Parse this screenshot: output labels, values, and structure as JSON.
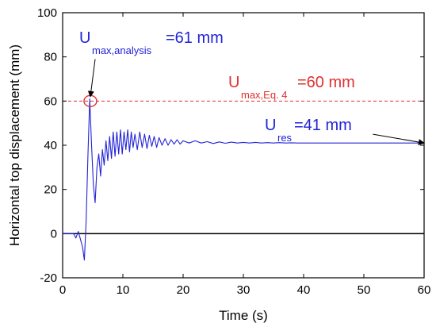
{
  "chart_data": {
    "type": "line",
    "title": "",
    "xlabel": "Time (s)",
    "ylabel": "Horizontal top displacement (mm)",
    "xlim": [
      0,
      60
    ],
    "ylim": [
      -20,
      100
    ],
    "x_ticks": [
      0,
      10,
      20,
      30,
      40,
      50,
      60
    ],
    "y_ticks": [
      -20,
      0,
      20,
      40,
      60,
      80,
      100
    ],
    "grid": false,
    "series": [
      {
        "color": "#2323d8",
        "x": [
          0.0,
          1.8,
          2.2,
          2.6,
          3.0,
          3.3,
          3.6,
          3.9,
          4.2,
          4.5,
          4.8,
          5.1,
          5.4,
          5.7,
          6.0,
          6.3,
          6.6,
          6.9,
          7.2,
          7.5,
          7.8,
          8.1,
          8.4,
          8.7,
          9.0,
          9.3,
          9.6,
          9.9,
          10.2,
          10.5,
          10.8,
          11.1,
          11.4,
          11.7,
          12.0,
          12.4,
          12.8,
          13.2,
          13.6,
          14.0,
          14.4,
          14.8,
          15.2,
          15.6,
          16.0,
          16.5,
          17.0,
          17.5,
          18.0,
          18.5,
          19.0,
          19.5,
          20.0,
          21.0,
          22.0,
          23.0,
          24.0,
          25.0,
          26.0,
          27.0,
          28.0,
          29.0,
          30.0,
          31.0,
          32.0,
          33.0,
          34.0,
          35.0,
          36.0,
          37.0,
          38.0,
          39.0,
          40.0,
          45.0,
          50.0,
          55.0,
          60.0
        ],
        "y": [
          0.0,
          0.0,
          -2.0,
          1.0,
          -3.0,
          -6.0,
          -12.0,
          5.0,
          35.0,
          61.0,
          40.0,
          22.0,
          14.0,
          30.0,
          36.0,
          26.0,
          38.0,
          31.0,
          42.0,
          33.0,
          44.0,
          34.0,
          46.0,
          35.0,
          46.0,
          36.0,
          47.0,
          36.0,
          46.0,
          38.0,
          47.0,
          37.0,
          46.0,
          39.0,
          45.0,
          38.0,
          46.0,
          39.0,
          45.0,
          38.5,
          44.5,
          39.5,
          44.0,
          39.0,
          43.5,
          40.0,
          43.0,
          40.0,
          42.5,
          40.5,
          42.5,
          40.5,
          42.0,
          41.0,
          42.0,
          41.0,
          41.6,
          40.8,
          41.5,
          40.9,
          41.4,
          41.0,
          41.3,
          41.0,
          41.3,
          41.0,
          41.2,
          41.0,
          41.2,
          41.0,
          41.1,
          41.0,
          41.0,
          41.0,
          41.0,
          41.0,
          41.0
        ]
      }
    ],
    "reference_lines": [
      {
        "axis": "y",
        "value": 60,
        "color": "#e03030",
        "style": "dashed"
      },
      {
        "axis": "y",
        "value": 0,
        "color": "#000000",
        "style": "solid"
      }
    ],
    "highlight_point": {
      "x": 4.6,
      "y": 60,
      "color": "#e03030"
    },
    "annotations": [
      {
        "main": "U",
        "sub": "max,analysis",
        "rest": "=61 mm",
        "color": "#2323d8"
      },
      {
        "main": "U",
        "sub": "max,Eq. 4",
        "rest": "=60 mm",
        "color": "#e03030"
      },
      {
        "main": "U",
        "sub": "res",
        "rest": "=41 mm",
        "color": "#2323d8"
      }
    ],
    "arrows": [
      {
        "from": [
          5.4,
          79
        ],
        "to": [
          4.6,
          62
        ]
      },
      {
        "from": [
          51.5,
          45
        ],
        "to": [
          60,
          41
        ]
      }
    ]
  }
}
